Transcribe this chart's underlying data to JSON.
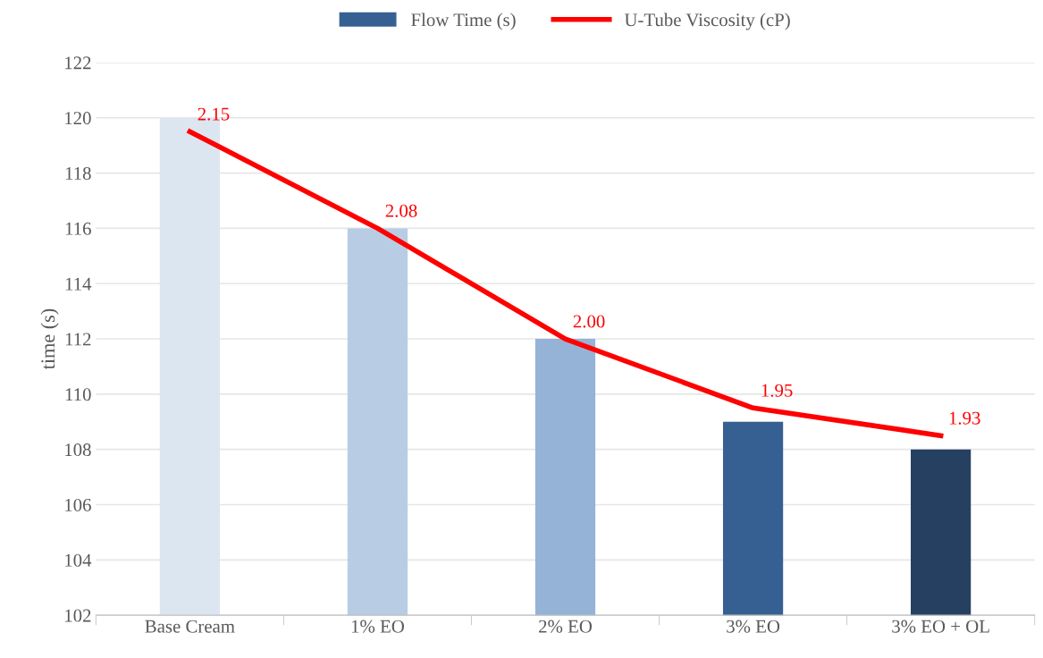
{
  "chart_data": {
    "type": "bar",
    "ylabel": "time (s)",
    "categories": [
      "Base Cream",
      "1% EO",
      "2% EO",
      "3% EO",
      "3% EO + OL"
    ],
    "series": [
      {
        "name": "Flow Time (s)",
        "color": "#366092",
        "colors": [
          "#dce6f1",
          "#b8cce4",
          "#95b3d7",
          "#366092",
          "#254061"
        ],
        "values": [
          120,
          116,
          112,
          109,
          108
        ]
      },
      {
        "name": "U-Tube Viscosity (cP)",
        "type": "line",
        "axis": "y2",
        "color": "#ff0000",
        "values": [
          2.15,
          2.08,
          2.0,
          1.95,
          1.93
        ],
        "value_labels": [
          "2.15",
          "2.08",
          "2.00",
          "1.95",
          "1.93"
        ]
      }
    ],
    "ylim": [
      102,
      122
    ],
    "yticks": [
      102,
      104,
      106,
      108,
      110,
      112,
      114,
      116,
      118,
      120,
      122
    ],
    "y2lim": [
      1.8,
      2.2
    ],
    "grid": "y",
    "legend": "top",
    "marker": "none",
    "line_style": "solid"
  }
}
